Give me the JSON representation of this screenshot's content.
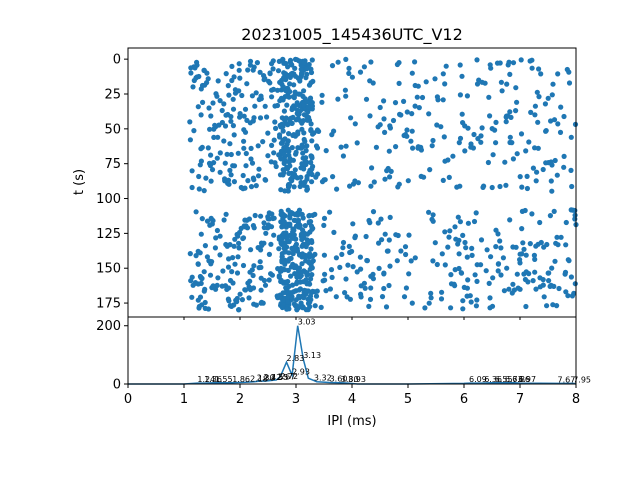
{
  "title": "20231005_145436UTC_V12",
  "colors": {
    "series": "#1f77b4",
    "axis": "#000000",
    "background": "#ffffff"
  },
  "chart_data": [
    {
      "type": "scatter",
      "title": "20231005_145436UTC_V12",
      "xlabel": "",
      "ylabel": "t (s)",
      "xlim": [
        0,
        8
      ],
      "ylim": [
        185,
        -8
      ],
      "y_inverted": true,
      "yticks": [
        0,
        25,
        50,
        75,
        100,
        125,
        150,
        175
      ],
      "x_tick_labels_shown": false,
      "grid": false,
      "description_note": "Raster of inter-pulse intervals over time; dense column near 3.03 ms, sparser bands at 1.2-2.8 ms and 6-8 ms, gap near t=95-110 s",
      "clusters": [
        {
          "x_range": [
            1.0,
            8.0
          ],
          "t_range": [
            0,
            95
          ],
          "density": "sparse"
        },
        {
          "x_range": [
            2.7,
            3.3
          ],
          "t_range": [
            0,
            95
          ],
          "density": "dense"
        },
        {
          "x_range": [
            1.0,
            8.0
          ],
          "t_range": [
            108,
            180
          ],
          "density": "sparse"
        },
        {
          "x_range": [
            2.7,
            3.3
          ],
          "t_range": [
            108,
            180
          ],
          "density": "dense"
        }
      ]
    },
    {
      "type": "line",
      "xlabel": "IPI (ms)",
      "ylabel": "",
      "xlim": [
        0,
        8
      ],
      "ylim": [
        0,
        230
      ],
      "xticks": [
        0,
        1,
        2,
        3,
        4,
        5,
        6,
        7,
        8
      ],
      "yticks": [
        0,
        200
      ],
      "grid": false,
      "histogram": {
        "x": [
          0,
          1.0,
          1.24,
          1.36,
          1.55,
          1.86,
          2.1,
          2.25,
          2.35,
          2.45,
          2.55,
          2.65,
          2.72,
          2.83,
          2.93,
          3.03,
          3.13,
          3.22,
          3.37,
          3.6,
          3.8,
          3.93,
          4.1,
          5.0,
          6.0,
          6.1,
          6.3,
          6.5,
          6.7,
          6.9,
          7.0,
          7.67,
          7.95,
          8.0
        ],
        "y": [
          0,
          0,
          3,
          3,
          4,
          4,
          6,
          8,
          10,
          10,
          12,
          14,
          25,
          75,
          30,
          200,
          85,
          20,
          8,
          5,
          4,
          3,
          0,
          0,
          2,
          3,
          3,
          4,
          4,
          4,
          3,
          2,
          2,
          0
        ]
      },
      "peak_labels": [
        {
          "x": 1.24,
          "y": 3,
          "text": "1.24"
        },
        {
          "x": 1.36,
          "y": 3,
          "text": "1.36"
        },
        {
          "x": 1.55,
          "y": 4,
          "text": "1.55"
        },
        {
          "x": 1.86,
          "y": 4,
          "text": "1.86"
        },
        {
          "x": 2.18,
          "y": 6,
          "text": "2.18"
        },
        {
          "x": 2.3,
          "y": 8,
          "text": "2.30"
        },
        {
          "x": 2.42,
          "y": 10,
          "text": "2.42"
        },
        {
          "x": 2.55,
          "y": 10,
          "text": "2.55"
        },
        {
          "x": 2.67,
          "y": 12,
          "text": "2.67"
        },
        {
          "x": 2.72,
          "y": 14,
          "text": "2.72"
        },
        {
          "x": 2.83,
          "y": 75,
          "text": "2.83"
        },
        {
          "x": 2.93,
          "y": 30,
          "text": "2.93"
        },
        {
          "x": 3.03,
          "y": 200,
          "text": "3.03"
        },
        {
          "x": 3.13,
          "y": 85,
          "text": "3.13"
        },
        {
          "x": 3.32,
          "y": 8,
          "text": "3.32"
        },
        {
          "x": 3.6,
          "y": 5,
          "text": "3.60"
        },
        {
          "x": 3.8,
          "y": 4,
          "text": "3.80"
        },
        {
          "x": 3.93,
          "y": 3,
          "text": "3.93"
        },
        {
          "x": 6.09,
          "y": 3,
          "text": "6.09"
        },
        {
          "x": 6.36,
          "y": 3,
          "text": "6.36"
        },
        {
          "x": 6.55,
          "y": 4,
          "text": "6.55"
        },
        {
          "x": 6.73,
          "y": 4,
          "text": "6.73"
        },
        {
          "x": 6.86,
          "y": 4,
          "text": "6.86"
        },
        {
          "x": 6.97,
          "y": 3,
          "text": "6.97"
        },
        {
          "x": 7.67,
          "y": 2,
          "text": "7.67"
        },
        {
          "x": 7.95,
          "y": 2,
          "text": "7.95"
        }
      ]
    }
  ]
}
